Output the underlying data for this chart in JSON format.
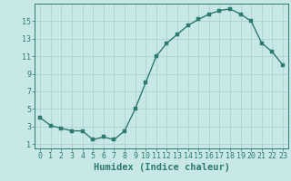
{
  "x": [
    0,
    1,
    2,
    3,
    4,
    5,
    6,
    7,
    8,
    9,
    10,
    11,
    12,
    13,
    14,
    15,
    16,
    17,
    18,
    19,
    20,
    21,
    22,
    23
  ],
  "y": [
    4.0,
    3.1,
    2.8,
    2.5,
    2.5,
    1.5,
    1.8,
    1.5,
    2.5,
    5.0,
    8.0,
    11.0,
    12.5,
    13.5,
    14.5,
    15.2,
    15.8,
    16.2,
    16.4,
    15.8,
    15.0,
    12.5,
    11.5,
    10.0
  ],
  "xlabel": "Humidex (Indice chaleur)",
  "yticks": [
    1,
    3,
    5,
    7,
    9,
    11,
    13,
    15
  ],
  "xticks": [
    0,
    1,
    2,
    3,
    4,
    5,
    6,
    7,
    8,
    9,
    10,
    11,
    12,
    13,
    14,
    15,
    16,
    17,
    18,
    19,
    20,
    21,
    22,
    23
  ],
  "ylim": [
    0.5,
    17.0
  ],
  "xlim": [
    -0.5,
    23.5
  ],
  "line_color": "#2d7a6e",
  "marker_color": "#2d7a6e",
  "bg_color": "#c8e8e8",
  "grid_color": "#a8cccc",
  "axes_color": "#2d7a6e",
  "tick_fontsize": 6.0,
  "xlabel_fontsize": 7.5,
  "linewidth": 1.0,
  "markersize": 2.5
}
